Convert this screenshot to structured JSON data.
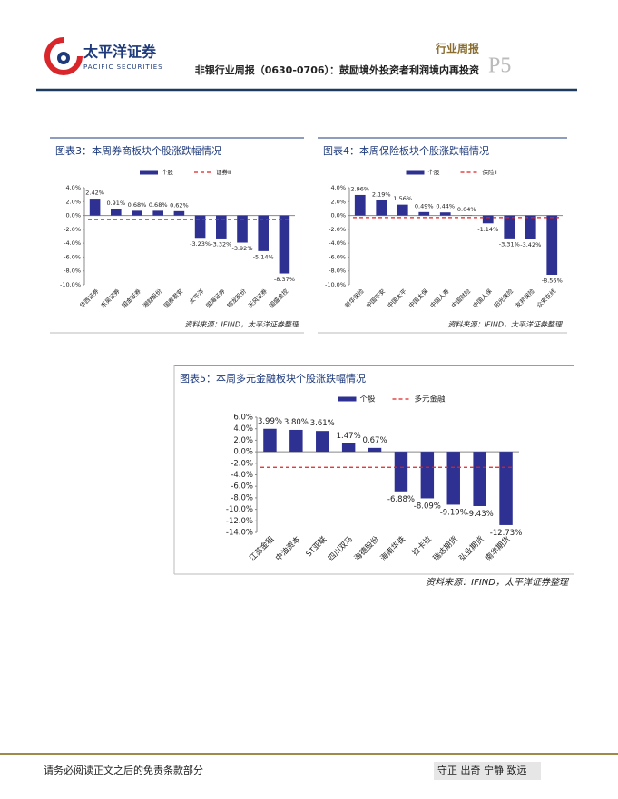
{
  "header": {
    "logo_name": "太平洋证券",
    "logo_subtitle": "PACIFIC SECURITIES",
    "report_type": "行业周报",
    "report_title": "非银行业周报（0630-0706）：鼓励境外投资者利润境内再投资",
    "page": "P5"
  },
  "chart_data": [
    {
      "type": "bar",
      "title": "图表3：本周券商板块个股涨跌幅情况",
      "categories": [
        "华西证券",
        "东吴证券",
        "国金证券",
        "湘财股份",
        "国泰君安",
        "太平洋",
        "国海证券",
        "锦龙股份",
        "天风证券",
        "国盛金控"
      ],
      "series": [
        {
          "name": "个股",
          "color": "#2e3192",
          "values": [
            2.42,
            0.91,
            0.68,
            0.68,
            0.62,
            -3.23,
            -3.32,
            -3.92,
            -5.14,
            -8.37
          ],
          "value_labels": [
            "2.42%",
            "0.91%",
            "0.68%",
            "0.68%",
            "0.62%",
            "-3.23%",
            "-3.32%",
            "-3.92%",
            "-5.14%",
            "-8.37%"
          ]
        },
        {
          "name": "证券Ⅱ",
          "color": "#e02020",
          "type": "line",
          "style": "dashed",
          "value": -0.6
        }
      ],
      "ylim": [
        -10,
        4
      ],
      "yticks": [
        {
          "value": 4,
          "label": "4.0%"
        },
        {
          "value": 2,
          "label": "2.0%"
        },
        {
          "value": 0,
          "label": "0.0%"
        },
        {
          "value": -2,
          "label": "-2.0%"
        },
        {
          "value": -4,
          "label": "-4.0%"
        },
        {
          "value": -6,
          "label": "-6.0%"
        },
        {
          "value": -8,
          "label": "-8.0%"
        },
        {
          "value": -10,
          "label": "-10.0%"
        }
      ],
      "source": "资料来源：IFIND，太平洋证券整理"
    },
    {
      "type": "bar",
      "title": "图表4：本周保险板块个股涨跌幅情况",
      "categories": [
        "新华保险",
        "中国平安",
        "中国太平",
        "中国太保",
        "中国人寿",
        "中国财险",
        "中国人保",
        "阳光保险",
        "友邦保险",
        "众安在线"
      ],
      "series": [
        {
          "name": "个股",
          "color": "#2e3192",
          "values": [
            2.96,
            2.19,
            1.56,
            0.49,
            0.44,
            0.04,
            -1.14,
            -3.31,
            -3.42,
            -8.56
          ],
          "value_labels": [
            "2.96%",
            "2.19%",
            "1.56%",
            "0.49%",
            "0.44%",
            "0.04%",
            "-1.14%",
            "-3.31%",
            "-3.42%",
            "-8.56%"
          ]
        },
        {
          "name": "保险Ⅱ",
          "color": "#e02020",
          "type": "line",
          "style": "dashed",
          "value": -0.3
        }
      ],
      "ylim": [
        -10,
        4
      ],
      "yticks": [
        {
          "value": 4,
          "label": "4.0%"
        },
        {
          "value": 2,
          "label": "2.0%"
        },
        {
          "value": 0,
          "label": "0.0%"
        },
        {
          "value": -2,
          "label": "-2.0%"
        },
        {
          "value": -4,
          "label": "-4.0%"
        },
        {
          "value": -6,
          "label": "-6.0%"
        },
        {
          "value": -8,
          "label": "-8.0%"
        },
        {
          "value": -10,
          "label": "-10.0%"
        }
      ],
      "source": "资料来源：IFIND，太平洋证券整理"
    },
    {
      "type": "bar",
      "title": "图表5：本周多元金融板块个股涨跌幅情况",
      "categories": [
        "江苏金租",
        "中油资本",
        "ST亚联",
        "四川双马",
        "海德股份",
        "海南华铁",
        "拉卡拉",
        "瑞达期货",
        "弘业期货",
        "南华期货"
      ],
      "series": [
        {
          "name": "个股",
          "color": "#2e3192",
          "values": [
            3.99,
            3.8,
            3.61,
            1.47,
            0.67,
            -6.88,
            -8.09,
            -9.19,
            -9.43,
            -12.73
          ],
          "value_labels": [
            "3.99%",
            "3.80%",
            "3.61%",
            "1.47%",
            "0.67%",
            "-6.88%",
            "-8.09%",
            "-9.19%",
            "-9.43%",
            "-12.73%"
          ]
        },
        {
          "name": "多元金融",
          "color": "#e02020",
          "type": "line",
          "style": "dashed",
          "value": -2.7
        }
      ],
      "ylim": [
        -14,
        6
      ],
      "yticks": [
        {
          "value": 6,
          "label": "6.0%"
        },
        {
          "value": 4,
          "label": "4.0%"
        },
        {
          "value": 2,
          "label": "2.0%"
        },
        {
          "value": 0,
          "label": "0.0%"
        },
        {
          "value": -2,
          "label": "-2.0%"
        },
        {
          "value": -4,
          "label": "-4.0%"
        },
        {
          "value": -6,
          "label": "-6.0%"
        },
        {
          "value": -8,
          "label": "-8.0%"
        },
        {
          "value": -10,
          "label": "-10.0%"
        },
        {
          "value": -12,
          "label": "-12.0%"
        },
        {
          "value": -14,
          "label": "-14.0%"
        }
      ],
      "source": "资料来源：IFIND，太平洋证券整理"
    }
  ],
  "footer": {
    "disclaimer": "请务必阅读正文之后的免责条款部分",
    "motto": "守正 出奇 宁静 致远"
  }
}
